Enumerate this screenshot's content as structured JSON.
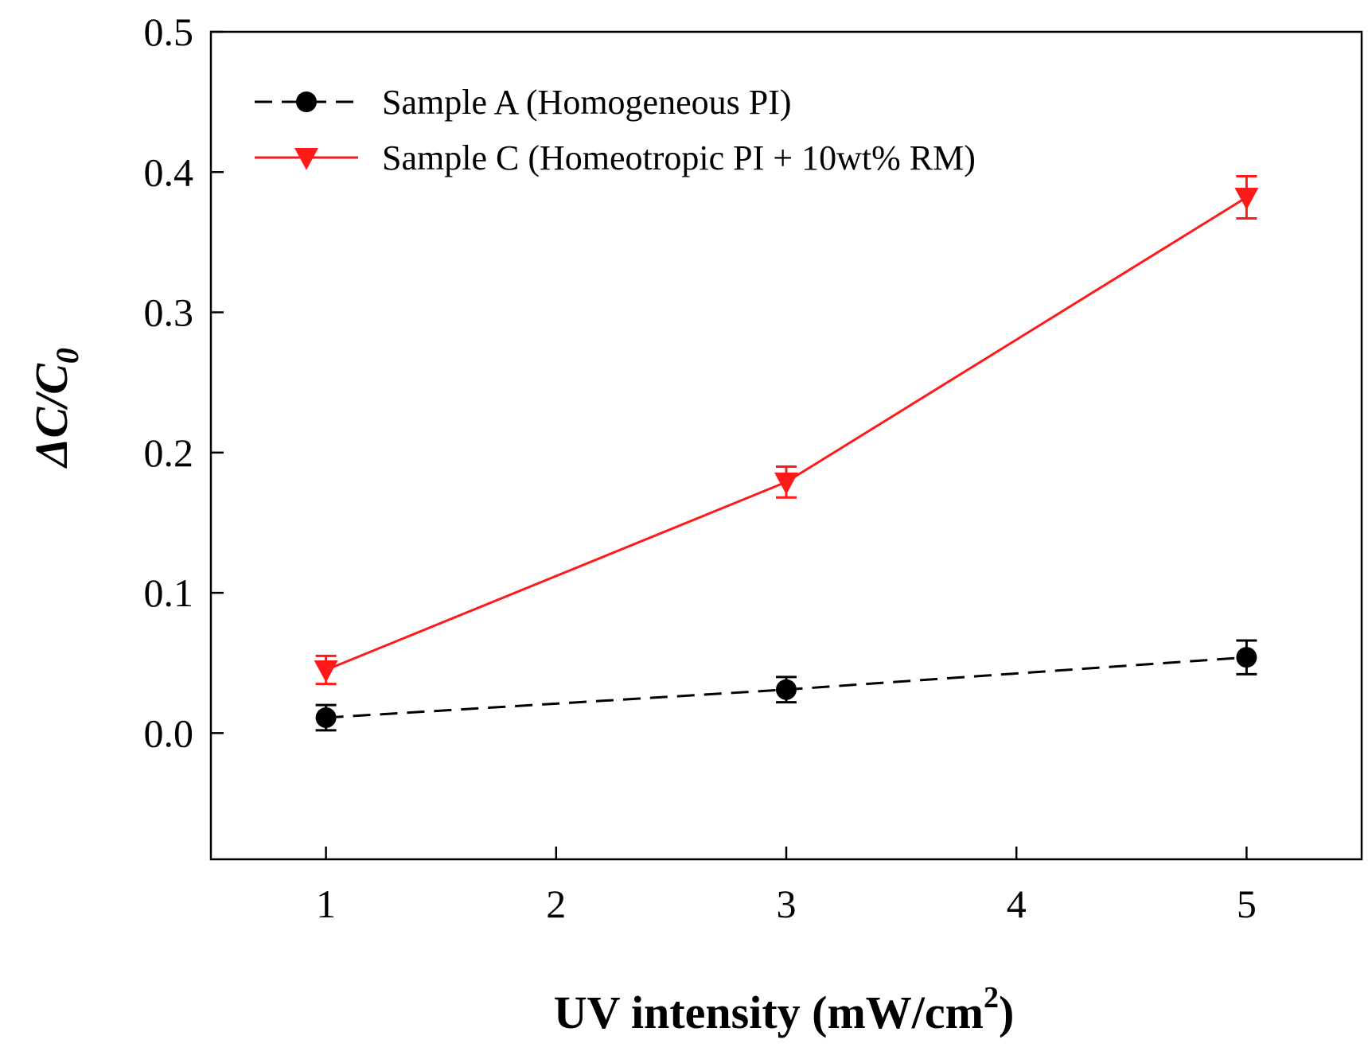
{
  "chart_data": {
    "type": "line",
    "title": "",
    "xlabel": {
      "main": "UV intensity (mW/cm",
      "sup": "2",
      "close": ")"
    },
    "ylabel": {
      "delta": "ΔC/C",
      "sub": "0"
    },
    "xlim": [
      0.5,
      5.5
    ],
    "ylim": [
      -0.09,
      0.5
    ],
    "xticks": [
      1,
      2,
      3,
      4,
      5
    ],
    "xtick_labels": [
      "1",
      "2",
      "3",
      "4",
      "5"
    ],
    "yticks": [
      0.0,
      0.1,
      0.2,
      0.3,
      0.4,
      0.5
    ],
    "ytick_labels": [
      "0.0",
      "0.1",
      "0.2",
      "0.3",
      "0.4",
      "0.5"
    ],
    "grid": false,
    "legend_position": "top-left",
    "series": [
      {
        "name": "Sample A (Homogeneous PI)",
        "color": "#000000",
        "line_style": "dashed",
        "marker": "circle",
        "x": [
          1,
          3,
          5
        ],
        "y": [
          0.011,
          0.031,
          0.054
        ],
        "err": [
          0.009,
          0.009,
          0.012
        ]
      },
      {
        "name": "Sample C (Homeotropic PI + 10wt% RM)",
        "color": "#ff1a1a",
        "line_style": "solid",
        "marker": "triangle-down",
        "x": [
          1,
          3,
          5
        ],
        "y": [
          0.045,
          0.179,
          0.382
        ],
        "err": [
          0.01,
          0.011,
          0.015
        ]
      }
    ]
  }
}
